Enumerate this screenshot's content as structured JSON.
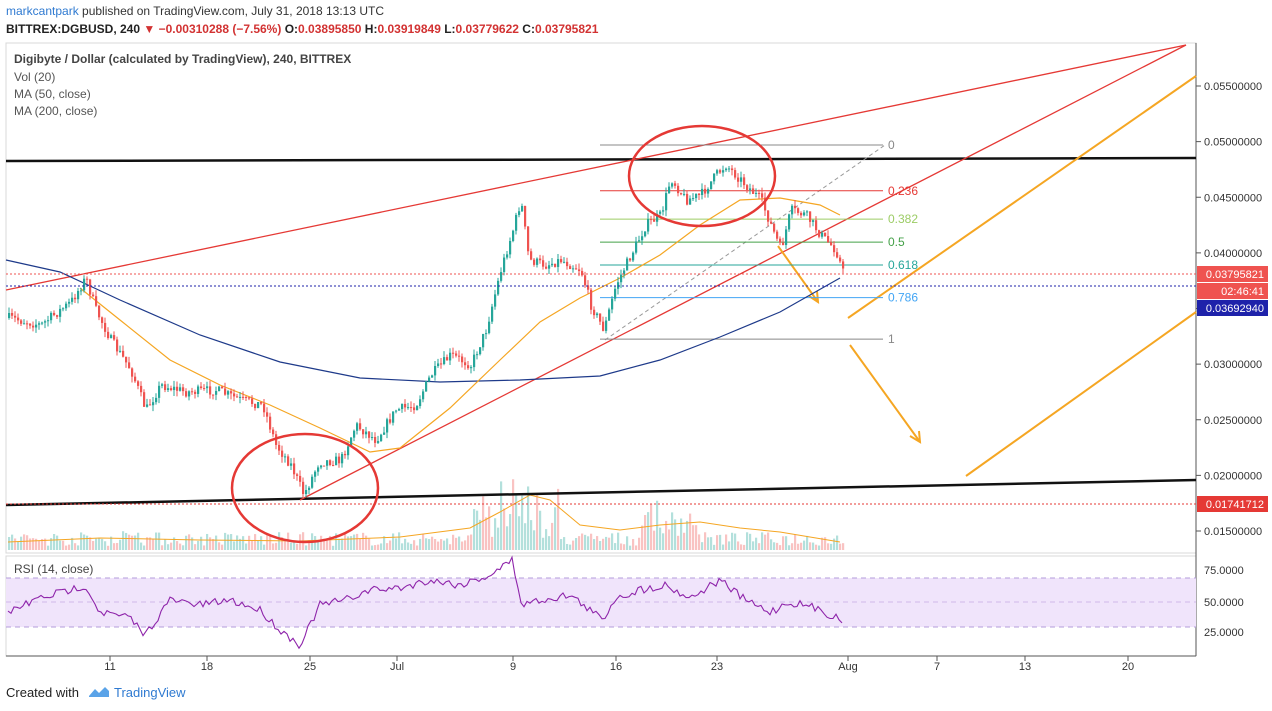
{
  "header": {
    "user": "markcantpark",
    "published": " published on TradingView.com, July 31, 2018 13:13 UTC",
    "symbol": "BITTREX:DGBUSD, 240",
    "change": "▼ −0.00310288 (−7.56%)",
    "ohlc_o_label": "O:",
    "ohlc_o": "0.03895850",
    "ohlc_h_label": "H:",
    "ohlc_h": "0.03919849",
    "ohlc_l_label": "L:",
    "ohlc_l": "0.03779622",
    "ohlc_c_label": "C:",
    "ohlc_c": "0.03795821"
  },
  "legend": {
    "title": "Digibyte / Dollar (calculated by TradingView), 240, BITTREX",
    "vol": "Vol (20)",
    "ma50": "MA (50, close)",
    "ma200": "MA (200, close)"
  },
  "rsi": {
    "label": "RSI (14, close)",
    "ticks": [
      "75.0000",
      "50.0000",
      "25.0000"
    ]
  },
  "footer": {
    "created": "Created with",
    "brand": "TradingView"
  },
  "chart_data": {
    "type": "candlestick",
    "price_axis": {
      "ticks": [
        "0.05500000",
        "0.05000000",
        "0.04500000",
        "0.04000000",
        "0.03500000",
        "0.03000000",
        "0.02500000",
        "0.02000000",
        "0.01500000"
      ],
      "ylim": [
        0.0125,
        0.0595
      ]
    },
    "time_axis": {
      "ticks": [
        "11",
        "18",
        "25",
        "Jul",
        "9",
        "16",
        "23",
        "Aug",
        "7",
        "13",
        "20"
      ]
    },
    "price_labels": [
      {
        "text": "0.03795821",
        "color": "#ef5350",
        "value": 0.03795821
      },
      {
        "text": "02:46:41",
        "color": "#ef5350",
        "value": 0.037
      },
      {
        "text": "0.03692940",
        "color": "#1e22aa",
        "value": 0.0369294
      },
      {
        "text": "0.01741712",
        "color": "#e53935",
        "value": 0.01741712
      }
    ],
    "fib_levels": [
      {
        "label": "0",
        "color": "#888888",
        "value": 0.0497
      },
      {
        "label": "0.236",
        "color": "#e53935",
        "value": 0.04558
      },
      {
        "label": "0.382",
        "color": "#9ccc65",
        "value": 0.04303
      },
      {
        "label": "0.5",
        "color": "#43a047",
        "value": 0.04097
      },
      {
        "label": "0.618",
        "color": "#26a69a",
        "value": 0.03891
      },
      {
        "label": "0.786",
        "color": "#42a5f5",
        "value": 0.03598
      },
      {
        "label": "1",
        "color": "#888888",
        "value": 0.03225
      }
    ],
    "series": [
      {
        "name": "MA (50, close)",
        "color": "#f5a623"
      },
      {
        "name": "MA (200, close)",
        "color": "#1e3a8a"
      },
      {
        "name": "Vol (20)",
        "color": "#f5a623"
      }
    ]
  }
}
